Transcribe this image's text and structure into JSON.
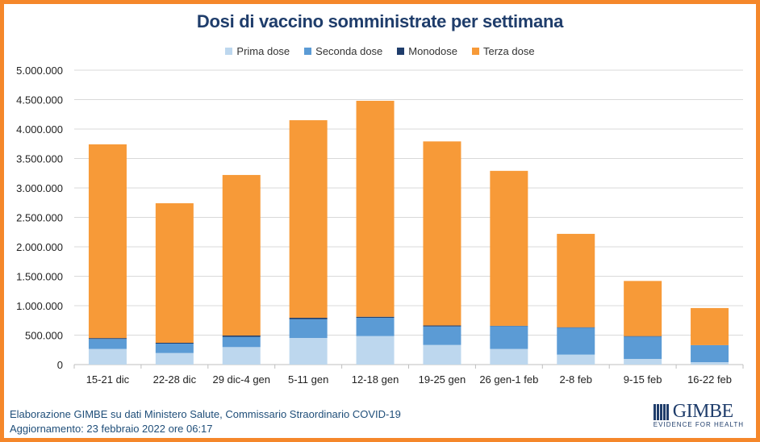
{
  "chart_data": {
    "type": "bar",
    "stacked": true,
    "title": "Dosi di vaccino somministrate per settimana",
    "xlabel": "",
    "ylabel": "",
    "ylim": [
      0,
      5000000
    ],
    "yticks": [
      0,
      500000,
      1000000,
      1500000,
      2000000,
      2500000,
      3000000,
      3500000,
      4000000,
      4500000,
      5000000
    ],
    "ytick_labels": [
      "0",
      "500.000",
      "1.000.000",
      "1.500.000",
      "2.000.000",
      "2.500.000",
      "3.000.000",
      "3.500.000",
      "4.000.000",
      "4.500.000",
      "5.000.000"
    ],
    "grid": true,
    "legend_position": "top",
    "categories": [
      "15-21 dic",
      "22-28 dic",
      "29 dic-4 gen",
      "5-11 gen",
      "12-18 gen",
      "19-25 gen",
      "26 gen-1 feb",
      "2-8 feb",
      "9-15 feb",
      "16-22 feb"
    ],
    "series": [
      {
        "name": "Prima dose",
        "color": "#BDD7EE",
        "values": [
          265000,
          196000,
          297000,
          452000,
          484000,
          333000,
          265000,
          169000,
          96000,
          41000
        ]
      },
      {
        "name": "Seconda dose",
        "color": "#5B9BD5",
        "values": [
          170000,
          160000,
          173000,
          319000,
          311000,
          315000,
          388000,
          457000,
          379000,
          288000
        ]
      },
      {
        "name": "Monodose",
        "color": "#1F3D6B",
        "values": [
          15000,
          14000,
          23000,
          24000,
          17000,
          16000,
          5000,
          8000,
          9000,
          1000
        ]
      },
      {
        "name": "Terza dose",
        "color": "#F79A38",
        "values": [
          3290000,
          2370000,
          2727000,
          3355000,
          3668000,
          3126000,
          2632000,
          1586000,
          936000,
          630000
        ]
      }
    ]
  },
  "footer": {
    "source": "Elaborazione GIMBE su dati Ministero Salute, Commissario Straordinario COVID-19",
    "updated": "Aggiornamento: 23 febbraio 2022 ore 06:17"
  },
  "logo": {
    "name": "GIMBE",
    "tagline": "EVIDENCE FOR HEALTH"
  }
}
